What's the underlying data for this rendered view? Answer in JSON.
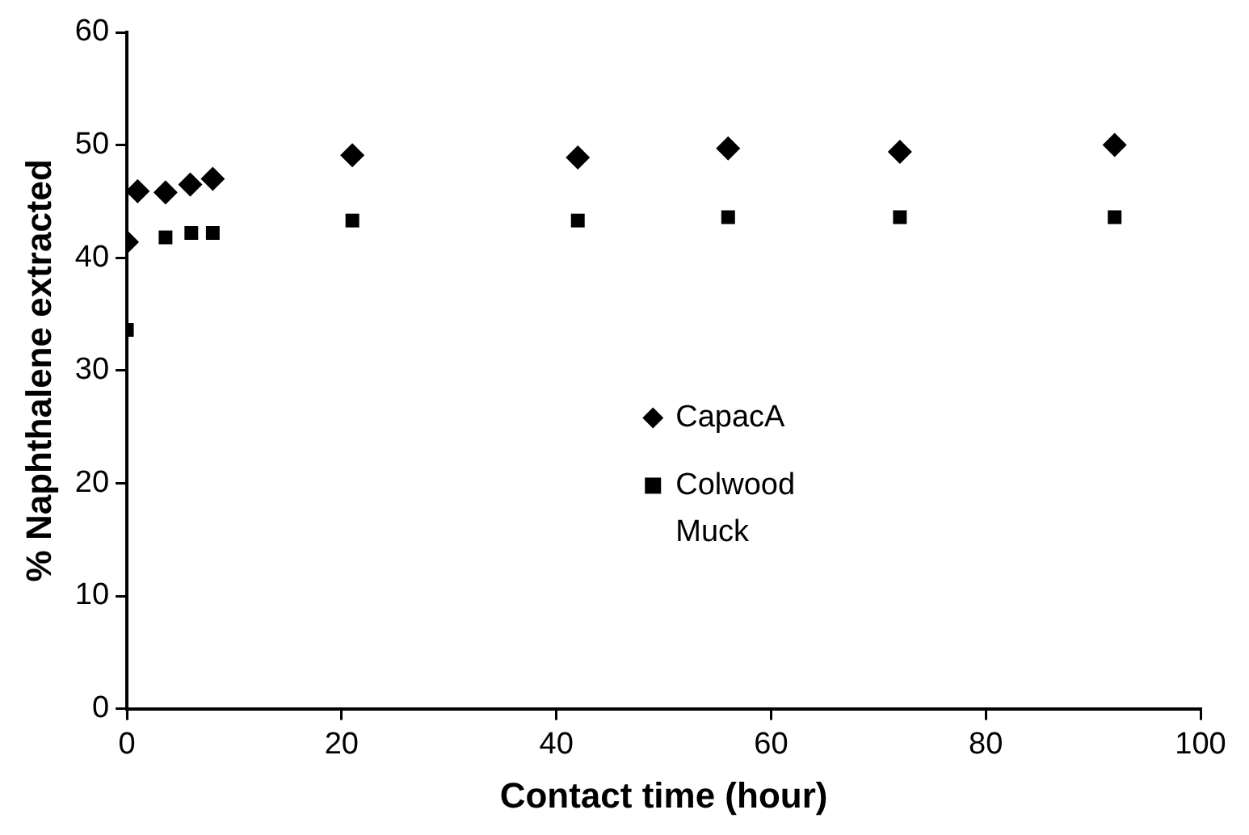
{
  "chart_data": {
    "type": "scatter",
    "xlabel": "Contact time (hour)",
    "ylabel": "% Naphthalene extracted",
    "xlim": [
      0,
      100
    ],
    "xticks": [
      0,
      20,
      40,
      60,
      80,
      100
    ],
    "ylim": [
      0,
      60
    ],
    "yticks": [
      0,
      10,
      20,
      30,
      40,
      50,
      60
    ],
    "grid": false,
    "legend": "right",
    "series": [
      {
        "name": "CapacA",
        "color": "#000000",
        "marker": "diamond",
        "x": [
          0,
          1,
          3.6,
          5.9,
          8,
          21,
          42,
          56,
          72,
          92
        ],
        "values": [
          41.4,
          45.9,
          45.8,
          46.5,
          47,
          49.1,
          48.9,
          49.7,
          49.4,
          50
        ]
      },
      {
        "name": "Colwood Muck",
        "color": "#000000",
        "marker": "square",
        "x": [
          0,
          3.6,
          6,
          8,
          21,
          42,
          56,
          72,
          92
        ],
        "values": [
          33.6,
          41.8,
          42.2,
          42.2,
          43.3,
          43.3,
          43.6,
          43.6,
          43.6
        ]
      }
    ]
  }
}
